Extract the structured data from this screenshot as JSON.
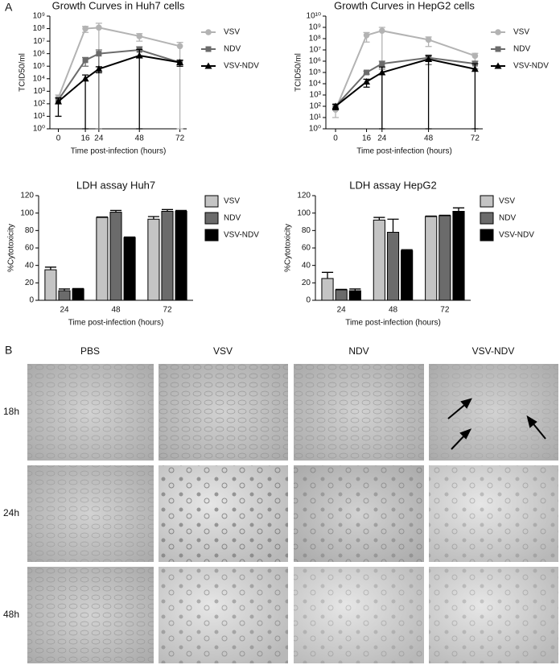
{
  "panel_labels": [
    "A",
    "B"
  ],
  "chart_data": [
    {
      "type": "line",
      "title": "Growth Curves in Huh7 cells",
      "x_label": "Time post-infection (hours)",
      "y_label": "TCID50/ml",
      "x": [
        0,
        16,
        24,
        48,
        72
      ],
      "xlim": [
        -5,
        76
      ],
      "xticks": [
        0,
        16,
        24,
        48,
        72
      ],
      "yscale": "log",
      "ylim": [
        1,
        1000000000
      ],
      "yticks": [
        {
          "value": 1,
          "label": "10⁰"
        },
        {
          "value": 10,
          "label": "10¹"
        },
        {
          "value": 100,
          "label": "10²"
        },
        {
          "value": 1000,
          "label": "10³"
        },
        {
          "value": 10000,
          "label": "10⁴"
        },
        {
          "value": 100000,
          "label": "10⁵"
        },
        {
          "value": 1000000,
          "label": "10⁶"
        },
        {
          "value": 10000000,
          "label": "10⁷"
        },
        {
          "value": 100000000,
          "label": "10⁸"
        },
        {
          "value": 1000000000,
          "label": "10⁹"
        }
      ],
      "legend": "right",
      "series": [
        {
          "name": "VSV",
          "color": "#b3b3b3",
          "marker": "circle",
          "values": [
            300,
            100000000,
            120000000,
            25000000,
            4000000
          ],
          "errors": [
            200,
            50000000,
            150000000,
            15000000,
            4000000
          ]
        },
        {
          "name": "NDV",
          "color": "#6b6b6b",
          "marker": "square",
          "values": [
            200,
            300000,
            1000000,
            2000000,
            200000
          ],
          "errors": [
            100,
            200000,
            1000000,
            1500000,
            100000
          ]
        },
        {
          "name": "VSV-NDV",
          "color": "#000000",
          "marker": "triangle",
          "values": [
            150,
            10000,
            60000,
            700000,
            200000
          ],
          "errors": [
            140,
            10000,
            30000,
            1500000,
            100000
          ]
        }
      ]
    },
    {
      "type": "line",
      "title": "Growth Curves in HepG2 cells",
      "x_label": "Time post-infection (hours)",
      "y_label": "TCID50/ml",
      "x": [
        0,
        16,
        24,
        48,
        72
      ],
      "xlim": [
        -5,
        76
      ],
      "xticks": [
        0,
        16,
        24,
        48,
        72
      ],
      "yscale": "log",
      "ylim": [
        1,
        10000000000
      ],
      "yticks": [
        {
          "value": 1,
          "label": "10⁰"
        },
        {
          "value": 10,
          "label": "10¹"
        },
        {
          "value": 100,
          "label": "10²"
        },
        {
          "value": 1000,
          "label": "10³"
        },
        {
          "value": 10000,
          "label": "10⁴"
        },
        {
          "value": 100000,
          "label": "10⁵"
        },
        {
          "value": 1000000,
          "label": "10⁶"
        },
        {
          "value": 10000000,
          "label": "10⁷"
        },
        {
          "value": 100000000,
          "label": "10⁸"
        },
        {
          "value": 1000000000,
          "label": "10⁹"
        },
        {
          "value": 10000000000,
          "label": "10¹⁰"
        }
      ],
      "legend": "right",
      "series": [
        {
          "name": "VSV",
          "color": "#b3b3b3",
          "marker": "circle",
          "values": [
            50,
            200000000,
            500000000,
            80000000,
            3000000
          ],
          "errors": [
            40,
            150000000,
            500000000,
            60000000,
            2000000
          ]
        },
        {
          "name": "NDV",
          "color": "#6b6b6b",
          "marker": "square",
          "values": [
            100,
            100000,
            600000,
            2000000,
            600000
          ],
          "errors": [
            50,
            30000,
            400000,
            1500000,
            400000
          ]
        },
        {
          "name": "VSV-NDV",
          "color": "#000000",
          "marker": "triangle",
          "values": [
            100,
            15000,
            100000,
            1500000,
            200000
          ],
          "errors": [
            50,
            10000,
            200000,
            1500000,
            400000
          ]
        }
      ]
    },
    {
      "type": "bar",
      "title": "LDH assay Huh7",
      "x_label": "Time post-infection (hours)",
      "y_label": "%Cytotoxicity",
      "categories": [
        "24",
        "48",
        "72"
      ],
      "ylim": [
        0,
        120
      ],
      "yticks": [
        0,
        20,
        40,
        60,
        80,
        100,
        120
      ],
      "legend": "right",
      "series": [
        {
          "name": "VSV",
          "color": "#c4c4c4",
          "values": [
            35,
            95,
            93
          ],
          "errors": [
            3,
            0.5,
            3
          ]
        },
        {
          "name": "NDV",
          "color": "#6b6b6b",
          "values": [
            11,
            101,
            102
          ],
          "errors": [
            2,
            2,
            2
          ]
        },
        {
          "name": "VSV-NDV",
          "color": "#000000",
          "values": [
            13,
            72,
            102
          ],
          "errors": [
            0.5,
            0.5,
            1
          ]
        }
      ]
    },
    {
      "type": "bar",
      "title": "LDH assay HepG2",
      "x_label": "Time post-infection (hours)",
      "y_label": "%Cytotoxicity",
      "categories": [
        "24",
        "48",
        "72"
      ],
      "ylim": [
        0,
        120
      ],
      "yticks": [
        0,
        20,
        40,
        60,
        80,
        100,
        120
      ],
      "legend": "right",
      "series": [
        {
          "name": "VSV",
          "color": "#c4c4c4",
          "values": [
            25,
            92,
            96
          ],
          "errors": [
            7,
            3,
            0.5
          ]
        },
        {
          "name": "NDV",
          "color": "#6b6b6b",
          "values": [
            12,
            78,
            97
          ],
          "errors": [
            0.5,
            15,
            0.5
          ]
        },
        {
          "name": "VSV-NDV",
          "color": "#000000",
          "values": [
            11,
            57,
            102
          ],
          "errors": [
            2,
            1,
            4
          ]
        }
      ]
    }
  ],
  "micrographs": {
    "columns": [
      "PBS",
      "VSV",
      "NDV",
      "VSV-NDV"
    ],
    "rows": [
      "18h",
      "24h",
      "48h"
    ]
  }
}
